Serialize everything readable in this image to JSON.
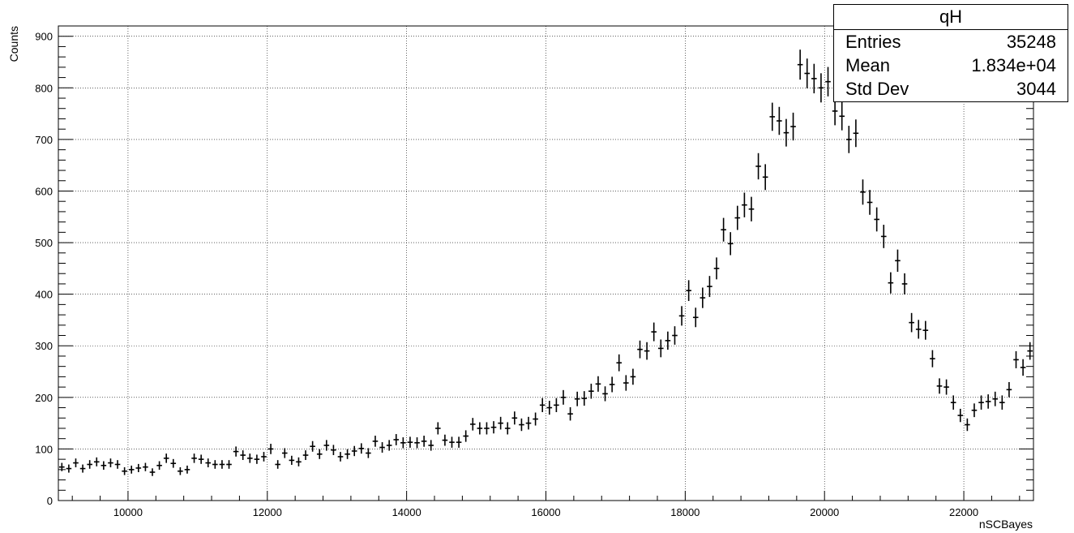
{
  "stats": {
    "title": "qH",
    "rows": [
      {
        "label": "Entries",
        "value": "35248"
      },
      {
        "label": "Mean",
        "value": "1.834e+04"
      },
      {
        "label": "Std Dev",
        "value": "3044"
      }
    ]
  },
  "chart_data": {
    "type": "scatter",
    "title": "",
    "xlabel": "nSCBayes",
    "ylabel": "Counts",
    "xlim": [
      9000,
      23000
    ],
    "ylim": [
      0,
      920
    ],
    "xticks": [
      10000,
      12000,
      14000,
      16000,
      18000,
      20000,
      22000
    ],
    "yticks": [
      0,
      100,
      200,
      300,
      400,
      500,
      600,
      700,
      800,
      900
    ],
    "grid": true,
    "legend": "top-right",
    "color": "#000000",
    "bin_width": 100,
    "series": [
      {
        "x": [
          9050,
          9150,
          9250,
          9350,
          9450,
          9550,
          9650,
          9750,
          9850,
          9950,
          10050,
          10150,
          10250,
          10350,
          10450,
          10550,
          10650,
          10750,
          10850,
          10950,
          11050,
          11150,
          11250,
          11350,
          11450,
          11550,
          11650,
          11750,
          11850,
          11950,
          12050,
          12150,
          12250,
          12350,
          12450,
          12550,
          12650,
          12750,
          12850,
          12950,
          13050,
          13150,
          13250,
          13350,
          13450,
          13550,
          13650,
          13750,
          13850,
          13950,
          14050,
          14150,
          14250,
          14350,
          14450,
          14550,
          14650,
          14750,
          14850,
          14950,
          15050,
          15150,
          15250,
          15350,
          15450,
          15550,
          15650,
          15750,
          15850,
          15950,
          16050,
          16150,
          16250,
          16350,
          16450,
          16550,
          16650,
          16750,
          16850,
          16950,
          17050,
          17150,
          17250,
          17350,
          17450,
          17550,
          17650,
          17750,
          17850,
          17950,
          18050,
          18150,
          18250,
          18350,
          18450,
          18550,
          18650,
          18750,
          18850,
          18950,
          19050,
          19150,
          19250,
          19350,
          19450,
          19550,
          19650,
          19750,
          19850,
          19950,
          20050,
          20150,
          20250,
          20350,
          20450,
          20550,
          20650,
          20750,
          20850,
          20950,
          21050,
          21150,
          21250,
          21350,
          21450,
          21550,
          21650,
          21750,
          21850,
          21950,
          22050,
          22150,
          22250,
          22350,
          22450,
          22550,
          22650,
          22750,
          22850,
          22950
        ],
        "y": [
          65,
          62,
          73,
          62,
          70,
          75,
          68,
          73,
          70,
          57,
          60,
          63,
          65,
          55,
          68,
          82,
          72,
          57,
          60,
          82,
          80,
          73,
          70,
          70,
          70,
          95,
          88,
          82,
          80,
          85,
          100,
          70,
          92,
          78,
          75,
          88,
          105,
          90,
          107,
          98,
          85,
          90,
          96,
          101,
          92,
          115,
          103,
          107,
          118,
          112,
          113,
          112,
          115,
          107,
          140,
          117,
          113,
          113,
          125,
          148,
          140,
          140,
          142,
          150,
          140,
          160,
          147,
          150,
          158,
          185,
          180,
          185,
          200,
          168,
          197,
          198,
          212,
          226,
          207,
          225,
          267,
          228,
          240,
          293,
          290,
          327,
          295,
          310,
          320,
          358,
          407,
          355,
          393,
          415,
          450,
          525,
          498,
          548,
          573,
          565,
          648,
          627,
          744,
          736,
          713,
          725,
          845,
          828,
          818,
          800,
          812,
          755,
          745,
          700,
          712,
          598,
          578,
          545,
          512,
          422,
          465,
          420,
          345,
          332,
          330,
          275,
          222,
          220,
          190,
          165,
          147,
          175,
          190,
          192,
          197,
          190,
          215,
          273,
          258,
          290
        ]
      }
    ]
  }
}
